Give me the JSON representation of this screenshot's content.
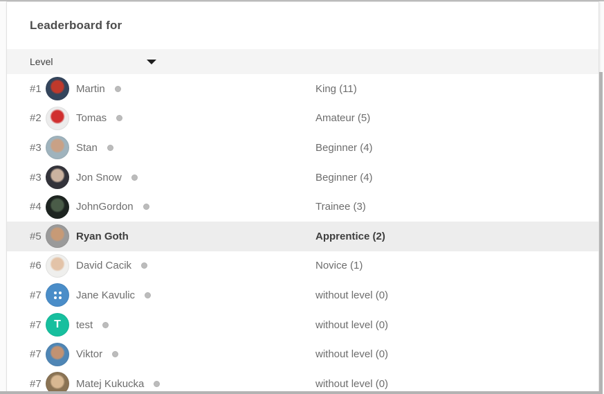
{
  "header": {
    "title": "Leaderboard for"
  },
  "filter": {
    "label": "Level",
    "icon": "chevron-down-icon"
  },
  "colors": {
    "highlight_row_bg": "#ededed",
    "status_dot": "#bcbcbc",
    "filter_bar_bg": "#f4f4f4",
    "text_primary": "#3e3e3e",
    "text_secondary": "#6d6d6d"
  },
  "rows": [
    {
      "rank": "#1",
      "name": "Martin",
      "level": "King (11)",
      "has_dot": true,
      "highlighted": false,
      "avatar": {
        "kind": "photo",
        "name": "martin-avatar",
        "fg": "#c0392b",
        "bg": "#34455c"
      }
    },
    {
      "rank": "#2",
      "name": "Tomas",
      "level": "Amateur (5)",
      "has_dot": true,
      "highlighted": false,
      "avatar": {
        "kind": "photo",
        "name": "tomas-avatar",
        "fg": "#d02f2f",
        "bg": "#ececec"
      }
    },
    {
      "rank": "#3",
      "name": "Stan",
      "level": "Beginner (4)",
      "has_dot": true,
      "highlighted": false,
      "avatar": {
        "kind": "photo",
        "name": "stan-avatar",
        "fg": "#c9a186",
        "bg": "#9fb3bd"
      }
    },
    {
      "rank": "#3",
      "name": "Jon Snow",
      "level": "Beginner (4)",
      "has_dot": true,
      "highlighted": false,
      "avatar": {
        "kind": "photo",
        "name": "jon-snow-avatar",
        "fg": "#cbb3a0",
        "bg": "#33333a"
      }
    },
    {
      "rank": "#4",
      "name": "JohnGordon",
      "level": "Trainee (3)",
      "has_dot": true,
      "highlighted": false,
      "avatar": {
        "kind": "photo",
        "name": "johngordon-avatar",
        "fg": "#4a5c48",
        "bg": "#1d2420"
      }
    },
    {
      "rank": "#5",
      "name": "Ryan Goth",
      "level": "Apprentice (2)",
      "has_dot": false,
      "highlighted": true,
      "avatar": {
        "kind": "photo",
        "name": "ryan-goth-avatar",
        "fg": "#c79a76",
        "bg": "#9a9a9a"
      }
    },
    {
      "rank": "#6",
      "name": "David Cacik",
      "level": "Novice (1)",
      "has_dot": true,
      "highlighted": false,
      "avatar": {
        "kind": "photo",
        "name": "david-cacik-avatar",
        "fg": "#e3c3a8",
        "bg": "#efefed"
      }
    },
    {
      "rank": "#7",
      "name": "Jane Kavulic",
      "level": "without level (0)",
      "has_dot": true,
      "highlighted": false,
      "avatar": {
        "kind": "dots",
        "name": "jane-kavulic-avatar",
        "bg": "#4a8dc8"
      }
    },
    {
      "rank": "#7",
      "name": "test",
      "level": "without level (0)",
      "has_dot": true,
      "highlighted": false,
      "avatar": {
        "kind": "letter",
        "name": "test-avatar",
        "bg": "#17bf9e",
        "text": "T"
      }
    },
    {
      "rank": "#7",
      "name": "Viktor",
      "level": "without level (0)",
      "has_dot": true,
      "highlighted": false,
      "avatar": {
        "kind": "photo",
        "name": "viktor-avatar",
        "fg": "#c29272",
        "bg": "#4f86b5"
      }
    },
    {
      "rank": "#7",
      "name": "Matej Kukucka",
      "level": "without level (0)",
      "has_dot": true,
      "highlighted": false,
      "avatar": {
        "kind": "photo",
        "name": "matej-kukucka-avatar",
        "fg": "#d8b892",
        "bg": "#8a7354"
      }
    }
  ]
}
